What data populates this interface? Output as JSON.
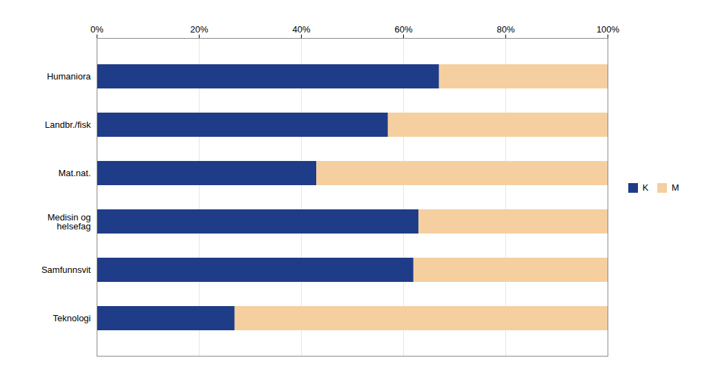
{
  "chart_data": {
    "type": "bar",
    "orientation": "horizontal",
    "stacked": true,
    "categories": [
      "Humaniora",
      "Landbr./fisk",
      "Mat.nat.",
      "Medisin og\nhelsefag",
      "Samfunnsvit",
      "Teknologi"
    ],
    "series": [
      {
        "name": "K",
        "color": "#1F3C88",
        "values": [
          67,
          57,
          43,
          63,
          62,
          27
        ]
      },
      {
        "name": "M",
        "color": "#F5CFA0",
        "values": [
          33,
          43,
          57,
          37,
          38,
          73
        ]
      }
    ],
    "xlim": [
      0,
      100
    ],
    "xticks": [
      {
        "value": 0,
        "label": "0%"
      },
      {
        "value": 20,
        "label": "20%"
      },
      {
        "value": 40,
        "label": "40%"
      },
      {
        "value": 60,
        "label": "60%"
      },
      {
        "value": 80,
        "label": "80%"
      },
      {
        "value": 100,
        "label": "100%"
      }
    ],
    "grid": true,
    "legend": "right"
  }
}
